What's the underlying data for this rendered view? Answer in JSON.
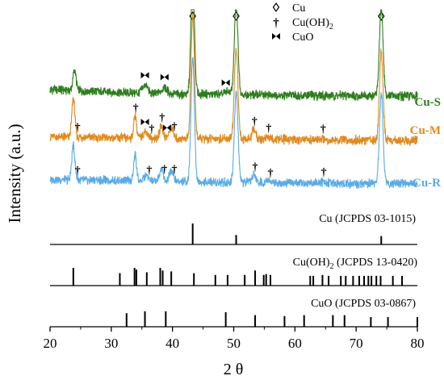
{
  "chart_data": {
    "type": "line",
    "xlabel": "2 θ",
    "ylabel": "Intensity (a.u.)",
    "xlim": [
      20,
      80
    ],
    "x_ticks": [
      20,
      30,
      40,
      50,
      60,
      70,
      80
    ],
    "grid": false,
    "legend": {
      "position": "top-center",
      "entries": [
        {
          "symbol": "◊",
          "label": "Cu"
        },
        {
          "symbol": "†",
          "label": "Cu(OH)",
          "sub": "2"
        },
        {
          "symbol": "⧓",
          "label": "CuO"
        }
      ]
    },
    "series": [
      {
        "name": "Cu-S",
        "color": "#2e7d1e",
        "baseline": [
          [
            20,
            0.95
          ],
          [
            30,
            0.75
          ],
          [
            40,
            0.62
          ],
          [
            50,
            0.58
          ],
          [
            60,
            0.52
          ],
          [
            70,
            0.48
          ],
          [
            80,
            0.45
          ]
        ],
        "peaks": [
          {
            "x": 24.0,
            "h": 1.5,
            "w": 0.25
          },
          {
            "x": 35.5,
            "h": 0.6,
            "w": 0.4
          },
          {
            "x": 38.7,
            "h": 0.5,
            "w": 0.4
          },
          {
            "x": 43.3,
            "h": 9.0,
            "w": 0.28
          },
          {
            "x": 49.0,
            "h": 0.2,
            "w": 0.4
          },
          {
            "x": 50.4,
            "h": 6.5,
            "w": 0.3
          },
          {
            "x": 74.1,
            "h": 6.5,
            "w": 0.3
          }
        ],
        "markers": [
          {
            "x": 35.5,
            "symbol": "⧓"
          },
          {
            "x": 38.7,
            "symbol": "⧓"
          },
          {
            "x": 48.7,
            "symbol": "⧓"
          }
        ]
      },
      {
        "name": "Cu-M",
        "color": "#e08a1e",
        "baseline": [
          [
            20,
            0.5
          ],
          [
            30,
            0.42
          ],
          [
            40,
            0.38
          ],
          [
            50,
            0.33
          ],
          [
            60,
            0.28
          ],
          [
            70,
            0.24
          ],
          [
            80,
            0.22
          ]
        ],
        "peaks": [
          {
            "x": 23.8,
            "h": 2.8,
            "w": 0.25
          },
          {
            "x": 33.9,
            "h": 1.7,
            "w": 0.22
          },
          {
            "x": 35.6,
            "h": 0.5,
            "w": 0.35
          },
          {
            "x": 38.2,
            "h": 0.9,
            "w": 0.3
          },
          {
            "x": 39.8,
            "h": 0.8,
            "w": 0.3
          },
          {
            "x": 43.3,
            "h": 9.0,
            "w": 0.28
          },
          {
            "x": 50.4,
            "h": 6.5,
            "w": 0.3
          },
          {
            "x": 53.3,
            "h": 0.7,
            "w": 0.3
          },
          {
            "x": 55.5,
            "h": 0.2,
            "w": 0.3
          },
          {
            "x": 64.5,
            "h": 0.15,
            "w": 0.3
          },
          {
            "x": 74.1,
            "h": 6.5,
            "w": 0.3
          }
        ],
        "markers": [
          {
            "x": 24.5,
            "symbol": "†"
          },
          {
            "x": 34.0,
            "symbol": "†"
          },
          {
            "x": 35.5,
            "symbol": "⧓"
          },
          {
            "x": 36.6,
            "symbol": "†"
          },
          {
            "x": 38.3,
            "symbol": "†"
          },
          {
            "x": 39.1,
            "symbol": "⧓"
          },
          {
            "x": 40.3,
            "symbol": "†"
          },
          {
            "x": 53.4,
            "symbol": "†"
          },
          {
            "x": 55.7,
            "symbol": "†"
          },
          {
            "x": 64.6,
            "symbol": "†"
          }
        ]
      },
      {
        "name": "Cu-R",
        "color": "#5aabe6",
        "baseline": [
          [
            20,
            0.55
          ],
          [
            30,
            0.48
          ],
          [
            40,
            0.42
          ],
          [
            50,
            0.35
          ],
          [
            60,
            0.3
          ],
          [
            70,
            0.27
          ],
          [
            80,
            0.25
          ]
        ],
        "peaks": [
          {
            "x": 23.8,
            "h": 2.5,
            "w": 0.25
          },
          {
            "x": 33.9,
            "h": 1.9,
            "w": 0.22
          },
          {
            "x": 35.7,
            "h": 0.4,
            "w": 0.35
          },
          {
            "x": 38.2,
            "h": 0.9,
            "w": 0.3
          },
          {
            "x": 39.8,
            "h": 0.9,
            "w": 0.3
          },
          {
            "x": 43.3,
            "h": 9.0,
            "w": 0.28
          },
          {
            "x": 50.4,
            "h": 6.5,
            "w": 0.3
          },
          {
            "x": 53.3,
            "h": 0.6,
            "w": 0.3
          },
          {
            "x": 55.5,
            "h": 0.2,
            "w": 0.3
          },
          {
            "x": 64.7,
            "h": 0.15,
            "w": 0.3
          },
          {
            "x": 74.1,
            "h": 6.5,
            "w": 0.3
          }
        ],
        "markers": [
          {
            "x": 24.5,
            "symbol": "†"
          },
          {
            "x": 36.2,
            "symbol": "†"
          },
          {
            "x": 38.7,
            "symbol": "†"
          },
          {
            "x": 40.3,
            "symbol": "†"
          },
          {
            "x": 53.5,
            "symbol": "†"
          },
          {
            "x": 56.0,
            "symbol": "†"
          },
          {
            "x": 64.7,
            "symbol": "†"
          }
        ]
      }
    ],
    "top_markers": [
      {
        "x": 43.3,
        "symbol": "◊"
      },
      {
        "x": 50.4,
        "symbol": "◊"
      },
      {
        "x": 74.1,
        "symbol": "◊"
      }
    ],
    "references": [
      {
        "label": "Cu (JCPDS 03-1015)",
        "sub": "",
        "lines": [
          {
            "x": 43.3,
            "h": 1.0
          },
          {
            "x": 50.4,
            "h": 0.45
          },
          {
            "x": 74.1,
            "h": 0.4
          }
        ]
      },
      {
        "label": "Cu(OH)",
        "sub": "2",
        "label_suffix": " (JCPDS 13-0420)",
        "lines": [
          {
            "x": 23.8,
            "h": 1.0
          },
          {
            "x": 31.4,
            "h": 0.7
          },
          {
            "x": 33.8,
            "h": 1.0
          },
          {
            "x": 34.1,
            "h": 0.9
          },
          {
            "x": 35.8,
            "h": 0.75
          },
          {
            "x": 38.0,
            "h": 1.0
          },
          {
            "x": 38.4,
            "h": 0.85
          },
          {
            "x": 39.8,
            "h": 0.8
          },
          {
            "x": 43.5,
            "h": 0.7
          },
          {
            "x": 47.0,
            "h": 0.6
          },
          {
            "x": 49.0,
            "h": 0.6
          },
          {
            "x": 51.8,
            "h": 0.6
          },
          {
            "x": 53.5,
            "h": 0.85
          },
          {
            "x": 54.9,
            "h": 0.6
          },
          {
            "x": 55.3,
            "h": 0.65
          },
          {
            "x": 56.0,
            "h": 0.6
          },
          {
            "x": 62.5,
            "h": 0.55
          },
          {
            "x": 63.0,
            "h": 0.55
          },
          {
            "x": 64.5,
            "h": 0.6
          },
          {
            "x": 65.5,
            "h": 0.55
          },
          {
            "x": 67.5,
            "h": 0.55
          },
          {
            "x": 68.3,
            "h": 0.55
          },
          {
            "x": 69.5,
            "h": 0.55
          },
          {
            "x": 70.5,
            "h": 0.55
          },
          {
            "x": 71.3,
            "h": 0.55
          },
          {
            "x": 72.0,
            "h": 0.55
          },
          {
            "x": 72.5,
            "h": 0.55
          },
          {
            "x": 73.3,
            "h": 0.55
          },
          {
            "x": 74.0,
            "h": 0.55
          },
          {
            "x": 76.0,
            "h": 0.55
          },
          {
            "x": 77.5,
            "h": 0.55
          }
        ]
      },
      {
        "label": "CuO (JCPDS 03-0867)",
        "sub": "",
        "lines": [
          {
            "x": 32.5,
            "h": 0.7
          },
          {
            "x": 35.5,
            "h": 0.8
          },
          {
            "x": 38.9,
            "h": 0.8
          },
          {
            "x": 48.7,
            "h": 0.75
          },
          {
            "x": 53.5,
            "h": 0.6
          },
          {
            "x": 58.3,
            "h": 0.55
          },
          {
            "x": 61.5,
            "h": 0.6
          },
          {
            "x": 66.2,
            "h": 0.6
          },
          {
            "x": 68.1,
            "h": 0.6
          },
          {
            "x": 72.4,
            "h": 0.5
          },
          {
            "x": 75.2,
            "h": 0.5
          },
          {
            "x": 80.0,
            "h": 0.5
          }
        ]
      }
    ]
  }
}
